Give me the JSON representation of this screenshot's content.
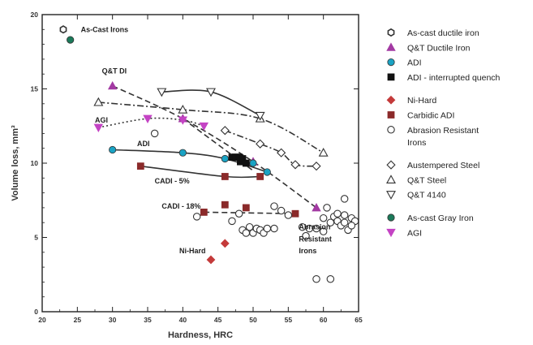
{
  "chart_data": {
    "type": "scatter",
    "xlabel": "Hardness, HRC",
    "ylabel": "Volume loss, mm³",
    "xlim": [
      20,
      65
    ],
    "ylim": [
      0,
      20
    ],
    "xticks": [
      20,
      25,
      30,
      35,
      40,
      45,
      50,
      55,
      60,
      65
    ],
    "yticks": [
      0,
      5,
      10,
      15,
      20
    ],
    "grid": false,
    "legend_position": "right",
    "series": [
      {
        "name": "As-cast ductile iron",
        "marker": "hexagon-open",
        "color": "#333333",
        "points": [
          [
            23,
            19
          ]
        ]
      },
      {
        "name": "Q&T Ductile Iron",
        "marker": "triangle-up",
        "color": "#a33aa3",
        "points": [
          [
            30,
            15.2
          ],
          [
            40,
            13
          ],
          [
            50,
            10.1
          ],
          [
            59,
            7
          ]
        ]
      },
      {
        "name": "ADI",
        "marker": "circle",
        "color": "#1aa3c4",
        "points": [
          [
            30,
            10.9
          ],
          [
            40,
            10.7
          ],
          [
            46,
            10.3
          ],
          [
            50,
            10
          ],
          [
            52,
            9.4
          ]
        ]
      },
      {
        "name": "ADI - interrupted quench",
        "marker": "square",
        "color": "#111111",
        "points": [
          [
            47,
            10.4
          ],
          [
            47.5,
            10.4
          ],
          [
            48,
            10.4
          ],
          [
            48.2,
            10.1
          ],
          [
            48.5,
            10.3
          ],
          [
            49,
            10
          ]
        ]
      },
      {
        "name": "Ni-Hard",
        "marker": "diamond",
        "color": "#c43a3a",
        "points": [
          [
            44,
            3.5
          ],
          [
            46,
            4.6
          ]
        ]
      },
      {
        "name": "Carbidic ADI",
        "marker": "square",
        "color": "#8b2a2a",
        "points": [
          [
            34,
            9.8
          ],
          [
            46,
            9.1
          ],
          [
            51,
            9.1
          ],
          [
            43,
            6.7
          ],
          [
            46,
            7.2
          ],
          [
            49,
            7
          ],
          [
            56,
            6.6
          ]
        ]
      },
      {
        "name": "Abrasion Resistant Irons",
        "marker": "circle-open",
        "color": "#333333",
        "points": [
          [
            36,
            12
          ],
          [
            42,
            6.4
          ],
          [
            47,
            6.1
          ],
          [
            48,
            6.6
          ],
          [
            48.5,
            5.5
          ],
          [
            49,
            5.3
          ],
          [
            49.5,
            5.7
          ],
          [
            50,
            5.3
          ],
          [
            50.5,
            5.6
          ],
          [
            51,
            5.5
          ],
          [
            51.5,
            5.3
          ],
          [
            52,
            5.6
          ],
          [
            53,
            5.6
          ],
          [
            53,
            7.1
          ],
          [
            54,
            6.8
          ],
          [
            55,
            6.5
          ],
          [
            57,
            5.7
          ],
          [
            57.5,
            5.1
          ],
          [
            58,
            5.6
          ],
          [
            59,
            5.6
          ],
          [
            59,
            2.2
          ],
          [
            60,
            5.4
          ],
          [
            60,
            6.3
          ],
          [
            60.5,
            7
          ],
          [
            61,
            2.2
          ],
          [
            61,
            6
          ],
          [
            61.5,
            6.4
          ],
          [
            62,
            6.6
          ],
          [
            62,
            6.1
          ],
          [
            62.5,
            5.8
          ],
          [
            63,
            6.5
          ],
          [
            63,
            6
          ],
          [
            63,
            7.6
          ],
          [
            63.5,
            5.5
          ],
          [
            64,
            6.3
          ],
          [
            64.5,
            6.1
          ],
          [
            64,
            5.8
          ]
        ]
      },
      {
        "name": "Austempered Steel",
        "marker": "diamond-open",
        "color": "#333333",
        "points": [
          [
            46,
            12.2
          ],
          [
            51,
            11.3
          ],
          [
            54,
            10.7
          ],
          [
            56,
            9.9
          ],
          [
            59,
            9.8
          ]
        ]
      },
      {
        "name": "Q&T Steel",
        "marker": "triangle-open",
        "color": "#333333",
        "points": [
          [
            28,
            14.1
          ],
          [
            40,
            13.6
          ],
          [
            51,
            13
          ],
          [
            60,
            10.7
          ]
        ]
      },
      {
        "name": "Q&T 4140",
        "marker": "triangle-down-open",
        "color": "#333333",
        "points": [
          [
            37,
            14.8
          ],
          [
            44,
            14.8
          ],
          [
            51,
            13.2
          ]
        ]
      },
      {
        "name": "As-cast Gray Iron",
        "marker": "circle",
        "color": "#1b7a5a",
        "points": [
          [
            24,
            18.3
          ]
        ]
      },
      {
        "name": "AGI",
        "marker": "triangle-down",
        "color": "#c443c4",
        "points": [
          [
            28,
            12.4
          ],
          [
            35,
            13
          ],
          [
            40,
            12.9
          ],
          [
            43,
            12.5
          ]
        ]
      }
    ],
    "curves": [
      {
        "style": "dash",
        "points": [
          [
            30,
            15.2
          ],
          [
            40,
            13
          ],
          [
            50,
            10.1
          ],
          [
            59,
            7
          ]
        ]
      },
      {
        "style": "solid",
        "points": [
          [
            30,
            10.9
          ],
          [
            40,
            10.7
          ],
          [
            46,
            10.3
          ],
          [
            52,
            9.4
          ]
        ]
      },
      {
        "style": "solid",
        "points": [
          [
            34,
            9.8
          ],
          [
            46,
            9.1
          ],
          [
            51,
            9.1
          ]
        ]
      },
      {
        "style": "dash",
        "points": [
          [
            43,
            6.7
          ],
          [
            56,
            6.6
          ]
        ]
      },
      {
        "style": "dashdot",
        "points": [
          [
            28,
            14.1
          ],
          [
            40,
            13.6
          ],
          [
            51,
            13
          ],
          [
            60,
            10.7
          ]
        ]
      },
      {
        "style": "solid",
        "points": [
          [
            37,
            14.8
          ],
          [
            44,
            14.8
          ],
          [
            51,
            13.2
          ]
        ]
      },
      {
        "style": "dashdot",
        "points": [
          [
            46,
            12.2
          ],
          [
            51,
            11.3
          ],
          [
            54,
            10.7
          ],
          [
            56,
            9.9
          ],
          [
            59,
            9.8
          ]
        ]
      },
      {
        "style": "dot",
        "points": [
          [
            28,
            12.4
          ],
          [
            35,
            13
          ],
          [
            40,
            12.9
          ],
          [
            43,
            12.5
          ]
        ]
      },
      {
        "style": "dash",
        "points": [
          [
            40,
            13
          ],
          [
            50,
            9.5
          ]
        ]
      }
    ],
    "annotations": [
      {
        "text": "As-Cast Irons",
        "x": 25.5,
        "y": 19
      },
      {
        "text": "Q&T DI",
        "x": 28.5,
        "y": 16.2
      },
      {
        "text": "AGI",
        "x": 27.5,
        "y": 12.9
      },
      {
        "text": "ADI",
        "x": 33.5,
        "y": 11.3
      },
      {
        "text": "CADI - 5%",
        "x": 36,
        "y": 8.8
      },
      {
        "text": "CADI - 18%",
        "x": 37,
        "y": 7.1
      },
      {
        "text": "Ni-Hard",
        "x": 39.5,
        "y": 4.1
      },
      {
        "text": "Abrasion",
        "x": 56.5,
        "y": 5.7
      },
      {
        "text": "Resistant",
        "x": 56.5,
        "y": 4.9
      },
      {
        "text": "Irons",
        "x": 56.5,
        "y": 4.1
      }
    ]
  }
}
